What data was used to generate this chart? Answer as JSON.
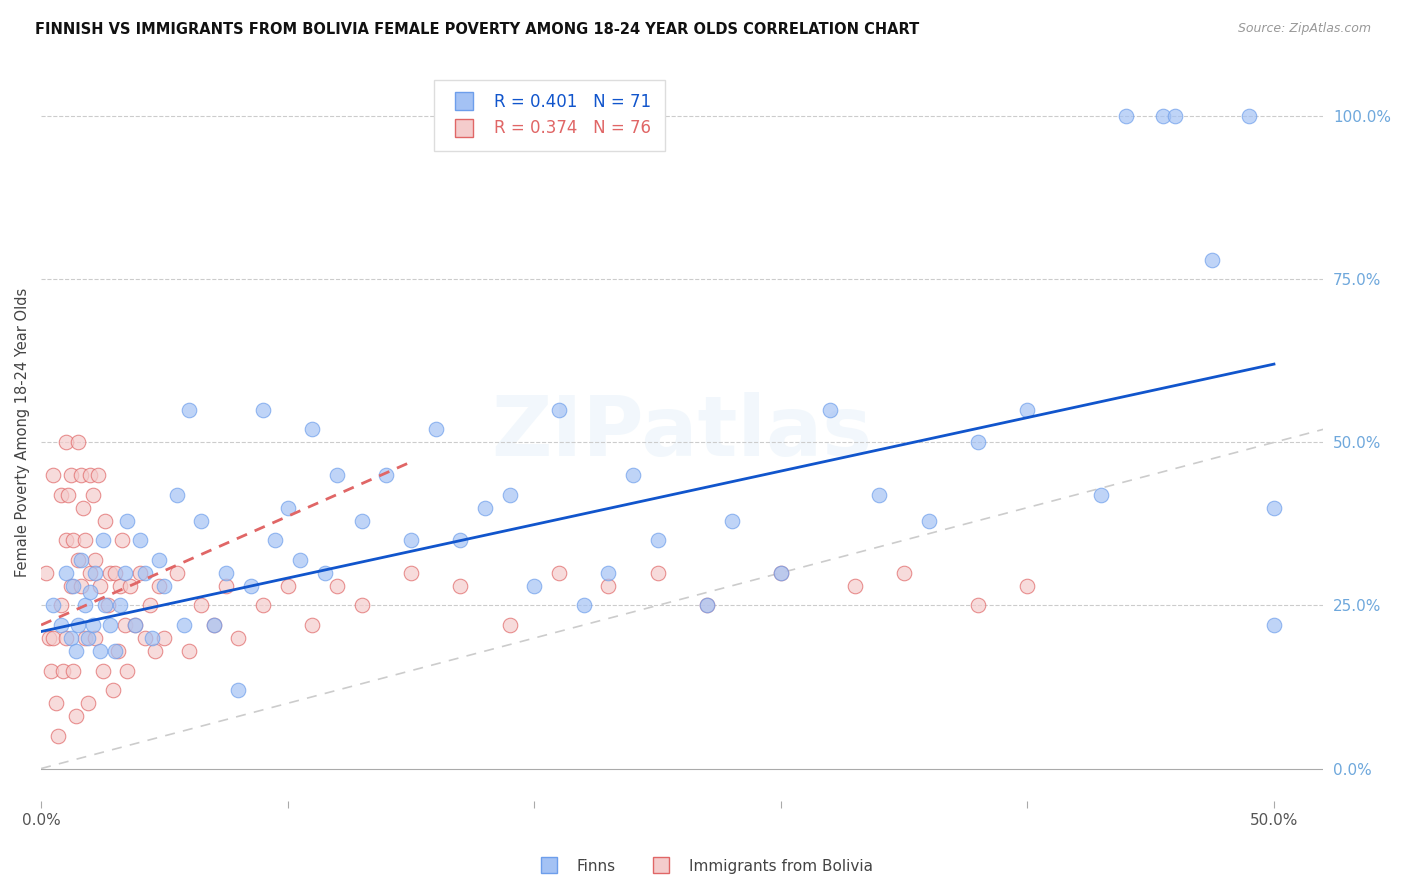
{
  "title": "FINNISH VS IMMIGRANTS FROM BOLIVIA FEMALE POVERTY AMONG 18-24 YEAR OLDS CORRELATION CHART",
  "source": "Source: ZipAtlas.com",
  "ylabel": "Female Poverty Among 18-24 Year Olds",
  "finn_label": "Finns",
  "bolivia_label": "Immigrants from Bolivia",
  "finn_R": 0.401,
  "finn_N": 71,
  "bolivia_R": 0.374,
  "bolivia_N": 76,
  "finn_color": "#a4c2f4",
  "bolivia_color": "#f4cccc",
  "finn_edge_color": "#6d9eeb",
  "bolivia_edge_color": "#e06666",
  "finn_line_color": "#1155cc",
  "bolivia_line_color": "#cc0000",
  "ref_line_color": "#cccccc",
  "grid_color": "#cccccc",
  "right_axis_color": "#6fa8dc",
  "watermark": "ZIPatlas",
  "xlim": [
    0.0,
    0.52
  ],
  "ylim": [
    -0.05,
    1.08
  ],
  "yticks_right": [
    0.0,
    0.25,
    0.5,
    0.75,
    1.0
  ],
  "finn_x": [
    0.005,
    0.008,
    0.01,
    0.012,
    0.013,
    0.014,
    0.015,
    0.016,
    0.018,
    0.019,
    0.02,
    0.021,
    0.022,
    0.024,
    0.025,
    0.026,
    0.028,
    0.03,
    0.032,
    0.034,
    0.035,
    0.038,
    0.04,
    0.042,
    0.045,
    0.048,
    0.05,
    0.055,
    0.058,
    0.06,
    0.065,
    0.07,
    0.075,
    0.08,
    0.085,
    0.09,
    0.095,
    0.1,
    0.105,
    0.11,
    0.115,
    0.12,
    0.13,
    0.14,
    0.15,
    0.16,
    0.17,
    0.18,
    0.19,
    0.2,
    0.21,
    0.22,
    0.23,
    0.24,
    0.25,
    0.27,
    0.28,
    0.3,
    0.32,
    0.34,
    0.36,
    0.38,
    0.4,
    0.43,
    0.44,
    0.455,
    0.46,
    0.475,
    0.49,
    0.5,
    0.5
  ],
  "finn_y": [
    0.25,
    0.22,
    0.3,
    0.2,
    0.28,
    0.18,
    0.22,
    0.32,
    0.25,
    0.2,
    0.27,
    0.22,
    0.3,
    0.18,
    0.35,
    0.25,
    0.22,
    0.18,
    0.25,
    0.3,
    0.38,
    0.22,
    0.35,
    0.3,
    0.2,
    0.32,
    0.28,
    0.42,
    0.22,
    0.55,
    0.38,
    0.22,
    0.3,
    0.12,
    0.28,
    0.55,
    0.35,
    0.4,
    0.32,
    0.52,
    0.3,
    0.45,
    0.38,
    0.45,
    0.35,
    0.52,
    0.35,
    0.4,
    0.42,
    0.28,
    0.55,
    0.25,
    0.3,
    0.45,
    0.35,
    0.25,
    0.38,
    0.3,
    0.55,
    0.42,
    0.38,
    0.5,
    0.55,
    0.42,
    1.0,
    1.0,
    1.0,
    0.78,
    1.0,
    0.22,
    0.4
  ],
  "bolivia_x": [
    0.002,
    0.003,
    0.004,
    0.005,
    0.005,
    0.006,
    0.007,
    0.008,
    0.008,
    0.009,
    0.01,
    0.01,
    0.01,
    0.011,
    0.012,
    0.012,
    0.013,
    0.013,
    0.014,
    0.015,
    0.015,
    0.016,
    0.016,
    0.017,
    0.018,
    0.018,
    0.019,
    0.02,
    0.02,
    0.021,
    0.022,
    0.022,
    0.023,
    0.024,
    0.025,
    0.026,
    0.027,
    0.028,
    0.029,
    0.03,
    0.031,
    0.032,
    0.033,
    0.034,
    0.035,
    0.036,
    0.038,
    0.04,
    0.042,
    0.044,
    0.046,
    0.048,
    0.05,
    0.055,
    0.06,
    0.065,
    0.07,
    0.075,
    0.08,
    0.09,
    0.1,
    0.11,
    0.12,
    0.13,
    0.15,
    0.17,
    0.19,
    0.21,
    0.23,
    0.25,
    0.27,
    0.3,
    0.33,
    0.35,
    0.38,
    0.4
  ],
  "bolivia_y": [
    0.3,
    0.2,
    0.15,
    0.45,
    0.2,
    0.1,
    0.05,
    0.42,
    0.25,
    0.15,
    0.5,
    0.35,
    0.2,
    0.42,
    0.45,
    0.28,
    0.15,
    0.35,
    0.08,
    0.5,
    0.32,
    0.45,
    0.28,
    0.4,
    0.2,
    0.35,
    0.1,
    0.45,
    0.3,
    0.42,
    0.2,
    0.32,
    0.45,
    0.28,
    0.15,
    0.38,
    0.25,
    0.3,
    0.12,
    0.3,
    0.18,
    0.28,
    0.35,
    0.22,
    0.15,
    0.28,
    0.22,
    0.3,
    0.2,
    0.25,
    0.18,
    0.28,
    0.2,
    0.3,
    0.18,
    0.25,
    0.22,
    0.28,
    0.2,
    0.25,
    0.28,
    0.22,
    0.28,
    0.25,
    0.3,
    0.28,
    0.22,
    0.3,
    0.28,
    0.3,
    0.25,
    0.3,
    0.28,
    0.3,
    0.25,
    0.28
  ],
  "finn_trendline": [
    0.21,
    0.62
  ],
  "bolivia_trendline_x": [
    0.0,
    0.15
  ],
  "bolivia_trendline_y": [
    0.22,
    0.47
  ]
}
